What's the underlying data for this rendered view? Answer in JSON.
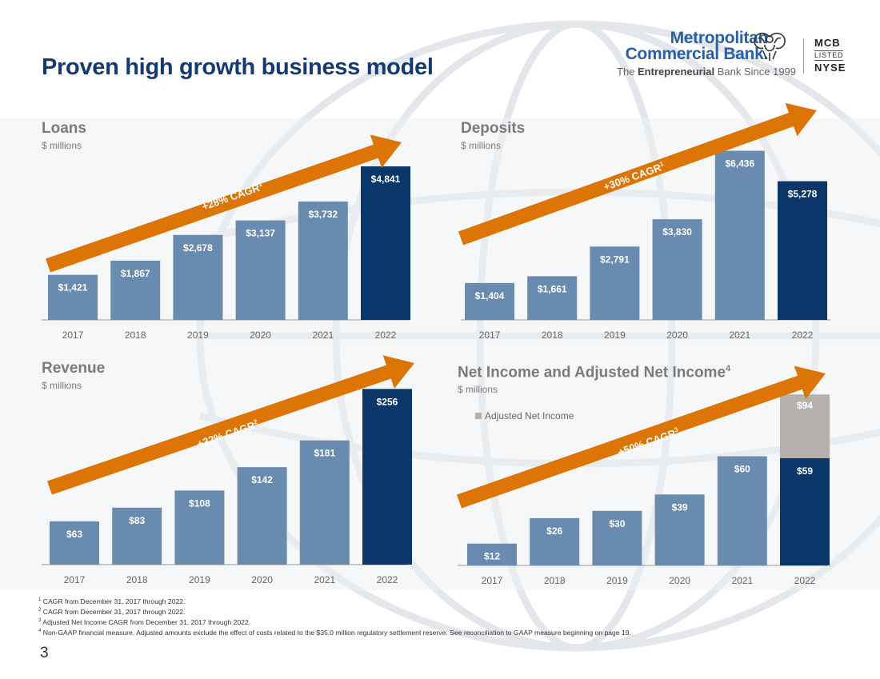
{
  "slide": {
    "title": "Proven high growth business model",
    "page_number": "3"
  },
  "logo": {
    "name_line1": "Metropolitan",
    "name_line2": "Commercial Bank.",
    "tagline_pre": "The ",
    "tagline_bold": "Entrepreneurial",
    "tagline_post": " Bank Since 1999",
    "listing_ticker": "MCB",
    "listing_label": "LISTED",
    "listing_exchange": "NYSE"
  },
  "colors": {
    "bar_light": "#6a8bb0",
    "bar_dark": "#0b3669",
    "bar_adjusted": "#b6b1ad",
    "arrow": "#dd7406",
    "title": "#153a73",
    "chart_title": "#7b7b7b"
  },
  "chart_data": [
    {
      "type": "bar",
      "title": "Loans",
      "subtitle": "$ millions",
      "unit": "$ millions",
      "categories": [
        "2017",
        "2018",
        "2019",
        "2020",
        "2021",
        "2022"
      ],
      "values": [
        1421,
        1867,
        2678,
        3137,
        3732,
        4841
      ],
      "value_labels": [
        "$1,421",
        "$1,867",
        "$2,678",
        "$3,137",
        "$3,732",
        "$4,841"
      ],
      "ylim": [
        0,
        5800
      ],
      "cagr_label": "+28% CAGR",
      "cagr_footnote": "1"
    },
    {
      "type": "bar",
      "title": "Deposits",
      "subtitle": "$ millions",
      "unit": "$ millions",
      "categories": [
        "2017",
        "2018",
        "2019",
        "2020",
        "2021",
        "2022"
      ],
      "values": [
        1404,
        1661,
        2791,
        3830,
        6436,
        5278
      ],
      "value_labels": [
        "$1,404",
        "$1,661",
        "$2,791",
        "$3,830",
        "$6,436",
        "$5,278"
      ],
      "ylim": [
        0,
        7000
      ],
      "cagr_label": "+30% CAGR",
      "cagr_footnote": "1"
    },
    {
      "type": "bar",
      "title": "Revenue",
      "subtitle": "$ millions",
      "unit": "$ millions",
      "categories": [
        "2017",
        "2018",
        "2019",
        "2020",
        "2021",
        "2022"
      ],
      "values": [
        63,
        83,
        108,
        142,
        181,
        256
      ],
      "value_labels": [
        "$63",
        "$83",
        "$108",
        "$142",
        "$181",
        "$256"
      ],
      "ylim": [
        0,
        275
      ],
      "cagr_label": "+32% CAGR",
      "cagr_footnote": "2"
    },
    {
      "type": "bar",
      "title": "Net Income and Adjusted Net Income",
      "title_footnote": "4",
      "subtitle": "$ millions",
      "unit": "$ millions",
      "categories": [
        "2017",
        "2018",
        "2019",
        "2020",
        "2021",
        "2022"
      ],
      "values": [
        12,
        26,
        30,
        39,
        60,
        59
      ],
      "value_labels": [
        "$12",
        "$26",
        "$30",
        "$39",
        "$60",
        "$59"
      ],
      "stacked_top": {
        "index": 5,
        "total": 94,
        "label": "$94"
      },
      "legend": "Adjusted Net Income",
      "ylim": [
        0,
        102
      ],
      "cagr_label": "+50% CAGR",
      "cagr_footnote": "3"
    }
  ],
  "footnotes": [
    {
      "num": "1",
      "text": "CAGR from December 31, 2017 through 2022."
    },
    {
      "num": "2",
      "text": "CAGR from December 31, 2017 through 2022."
    },
    {
      "num": "3",
      "text": "Adjusted Net Income CAGR from December 31, 2017 through 2022."
    },
    {
      "num": "4",
      "text": "Non-GAAP financial measure. Adjusted amounts exclude the effect of costs related to the $35.0 million regulatory settlement reserve. See reconciliation to GAAP measure beginning on page 19."
    }
  ]
}
